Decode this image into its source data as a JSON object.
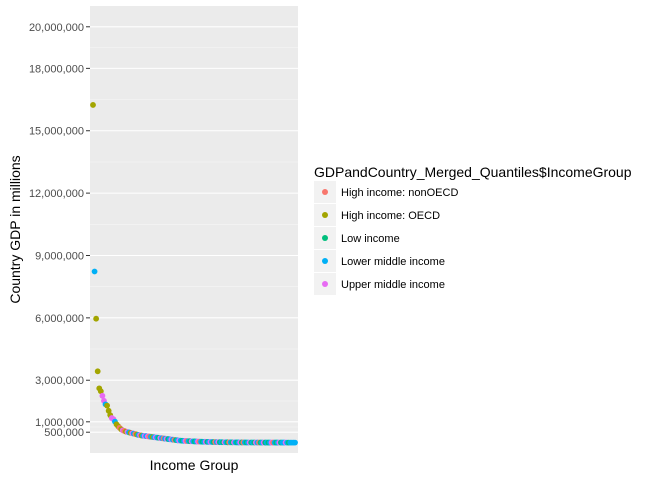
{
  "chart_data": {
    "type": "scatter",
    "xlabel": "Income Group",
    "ylabel": "Country GDP in millions",
    "ylim": [
      -500000,
      21000000
    ],
    "y_ticks": [
      {
        "value": 500000,
        "label": "500,000"
      },
      {
        "value": 1000000,
        "label": "1,000,000"
      },
      {
        "value": 3000000,
        "label": "3,000,000"
      },
      {
        "value": 6000000,
        "label": "6,000,000"
      },
      {
        "value": 9000000,
        "label": "9,000,000"
      },
      {
        "value": 12000000,
        "label": "12,000,000"
      },
      {
        "value": 15000000,
        "label": "15,000,000"
      },
      {
        "value": 18000000,
        "label": "18,000,000"
      },
      {
        "value": 20000000,
        "label": "20,000,000"
      }
    ],
    "grid": true,
    "legend_position": "right",
    "legend": {
      "title": "GDPandCountry_Merged_Quantiles$IncomeGroup",
      "entries": [
        {
          "key": "hno",
          "label": "High income: nonOECD",
          "color": "#F8766D"
        },
        {
          "key": "ho",
          "label": "High income: OECD",
          "color": "#A3A500"
        },
        {
          "key": "li",
          "label": "Low income",
          "color": "#00BF7D"
        },
        {
          "key": "lmi",
          "label": "Lower middle income",
          "color": "#00B0F6"
        },
        {
          "key": "umi",
          "label": "Upper middle income",
          "color": "#E76BF3"
        }
      ]
    },
    "points": [
      {
        "rank": 1,
        "value": 16240000,
        "group": "ho"
      },
      {
        "rank": 2,
        "value": 8230000,
        "group": "lmi"
      },
      {
        "rank": 3,
        "value": 5960000,
        "group": "ho"
      },
      {
        "rank": 4,
        "value": 3430000,
        "group": "ho"
      },
      {
        "rank": 5,
        "value": 2610000,
        "group": "ho"
      },
      {
        "rank": 6,
        "value": 2470000,
        "group": "ho"
      },
      {
        "rank": 7,
        "value": 2250000,
        "group": "umi"
      },
      {
        "rank": 8,
        "value": 2010000,
        "group": "umi"
      },
      {
        "rank": 9,
        "value": 1840000,
        "group": "lmi"
      },
      {
        "rank": 10,
        "value": 1780000,
        "group": "ho"
      },
      {
        "rank": 11,
        "value": 1530000,
        "group": "ho"
      },
      {
        "rank": 12,
        "value": 1320000,
        "group": "ho"
      },
      {
        "rank": 13,
        "value": 1180000,
        "group": "umi"
      },
      {
        "rank": 14,
        "value": 1130000,
        "group": "umi"
      },
      {
        "rank": 15,
        "value": 1010000,
        "group": "lmi"
      },
      {
        "rank": 16,
        "value": 880000,
        "group": "ho"
      },
      {
        "rank": 17,
        "value": 790000,
        "group": "ho"
      },
      {
        "rank": 18,
        "value": 710000,
        "group": "hno"
      },
      {
        "rank": 19,
        "value": 640000,
        "group": "ho"
      },
      {
        "rank": 20,
        "value": 590000,
        "group": "umi"
      },
      {
        "rank": 21,
        "value": 560000,
        "group": "hno"
      },
      {
        "rank": 22,
        "value": 530000,
        "group": "ho"
      },
      {
        "rank": 23,
        "value": 510000,
        "group": "umi"
      },
      {
        "rank": 24,
        "value": 490000,
        "group": "lmi"
      },
      {
        "rank": 25,
        "value": 470000,
        "group": "ho"
      },
      {
        "rank": 26,
        "value": 450000,
        "group": "umi"
      },
      {
        "rank": 27,
        "value": 430000,
        "group": "lmi"
      },
      {
        "rank": 28,
        "value": 410000,
        "group": "hno"
      },
      {
        "rank": 29,
        "value": 390000,
        "group": "ho"
      },
      {
        "rank": 30,
        "value": 370000,
        "group": "lmi"
      },
      {
        "rank": 31,
        "value": 360000,
        "group": "umi"
      },
      {
        "rank": 32,
        "value": 340000,
        "group": "ho"
      },
      {
        "rank": 33,
        "value": 330000,
        "group": "lmi"
      },
      {
        "rank": 34,
        "value": 320000,
        "group": "umi"
      },
      {
        "rank": 35,
        "value": 310000,
        "group": "lmi"
      },
      {
        "rank": 36,
        "value": 300000,
        "group": "umi"
      },
      {
        "rank": 37,
        "value": 290000,
        "group": "hno"
      },
      {
        "rank": 38,
        "value": 280000,
        "group": "lmi"
      },
      {
        "rank": 39,
        "value": 270000,
        "group": "ho"
      },
      {
        "rank": 40,
        "value": 260000,
        "group": "lmi"
      },
      {
        "rank": 41,
        "value": 250000,
        "group": "umi"
      },
      {
        "rank": 42,
        "value": 240000,
        "group": "lmi"
      },
      {
        "rank": 43,
        "value": 230000,
        "group": "li"
      },
      {
        "rank": 44,
        "value": 220000,
        "group": "umi"
      },
      {
        "rank": 45,
        "value": 210000,
        "group": "lmi"
      },
      {
        "rank": 46,
        "value": 200000,
        "group": "hno"
      },
      {
        "rank": 47,
        "value": 190000,
        "group": "lmi"
      },
      {
        "rank": 48,
        "value": 180000,
        "group": "umi"
      },
      {
        "rank": 49,
        "value": 170000,
        "group": "li"
      },
      {
        "rank": 50,
        "value": 160000,
        "group": "lmi"
      },
      {
        "rank": 51,
        "value": 150000,
        "group": "umi"
      },
      {
        "rank": 52,
        "value": 140000,
        "group": "lmi"
      },
      {
        "rank": 53,
        "value": 130000,
        "group": "hno"
      },
      {
        "rank": 54,
        "value": 120000,
        "group": "li"
      },
      {
        "rank": 55,
        "value": 110000,
        "group": "lmi"
      },
      {
        "rank": 56,
        "value": 100000,
        "group": "umi"
      },
      {
        "rank": 57,
        "value": 95000,
        "group": "lmi"
      },
      {
        "rank": 58,
        "value": 90000,
        "group": "li"
      },
      {
        "rank": 59,
        "value": 85000,
        "group": "lmi"
      },
      {
        "rank": 60,
        "value": 80000,
        "group": "umi"
      },
      {
        "rank": 61,
        "value": 76000,
        "group": "hno"
      },
      {
        "rank": 62,
        "value": 72000,
        "group": "lmi"
      },
      {
        "rank": 63,
        "value": 68000,
        "group": "li"
      },
      {
        "rank": 64,
        "value": 64000,
        "group": "umi"
      },
      {
        "rank": 65,
        "value": 60000,
        "group": "lmi"
      },
      {
        "rank": 66,
        "value": 57000,
        "group": "li"
      },
      {
        "rank": 67,
        "value": 54000,
        "group": "lmi"
      },
      {
        "rank": 68,
        "value": 51000,
        "group": "umi"
      },
      {
        "rank": 69,
        "value": 48000,
        "group": "hno"
      },
      {
        "rank": 70,
        "value": 45000,
        "group": "lmi"
      },
      {
        "rank": 71,
        "value": 42000,
        "group": "li"
      },
      {
        "rank": 72,
        "value": 40000,
        "group": "lmi"
      },
      {
        "rank": 73,
        "value": 38000,
        "group": "umi"
      },
      {
        "rank": 74,
        "value": 36000,
        "group": "li"
      },
      {
        "rank": 75,
        "value": 34000,
        "group": "lmi"
      },
      {
        "rank": 76,
        "value": 32000,
        "group": "umi"
      },
      {
        "rank": 77,
        "value": 30000,
        "group": "lmi"
      },
      {
        "rank": 78,
        "value": 28000,
        "group": "li"
      },
      {
        "rank": 79,
        "value": 26000,
        "group": "hno"
      },
      {
        "rank": 80,
        "value": 24000,
        "group": "lmi"
      },
      {
        "rank": 81,
        "value": 22000,
        "group": "umi"
      },
      {
        "rank": 82,
        "value": 20000,
        "group": "li"
      },
      {
        "rank": 83,
        "value": 19000,
        "group": "lmi"
      },
      {
        "rank": 84,
        "value": 18000,
        "group": "li"
      },
      {
        "rank": 85,
        "value": 17000,
        "group": "umi"
      },
      {
        "rank": 86,
        "value": 16000,
        "group": "lmi"
      },
      {
        "rank": 87,
        "value": 15000,
        "group": "li"
      },
      {
        "rank": 88,
        "value": 14000,
        "group": "hno"
      },
      {
        "rank": 89,
        "value": 13000,
        "group": "lmi"
      },
      {
        "rank": 90,
        "value": 12000,
        "group": "li"
      },
      {
        "rank": 91,
        "value": 11000,
        "group": "umi"
      },
      {
        "rank": 92,
        "value": 10000,
        "group": "lmi"
      },
      {
        "rank": 93,
        "value": 9500,
        "group": "li"
      },
      {
        "rank": 94,
        "value": 9000,
        "group": "lmi"
      },
      {
        "rank": 95,
        "value": 8500,
        "group": "umi"
      },
      {
        "rank": 96,
        "value": 8000,
        "group": "li"
      },
      {
        "rank": 97,
        "value": 7500,
        "group": "hno"
      },
      {
        "rank": 98,
        "value": 7000,
        "group": "lmi"
      },
      {
        "rank": 99,
        "value": 6500,
        "group": "li"
      },
      {
        "rank": 100,
        "value": 6000,
        "group": "lmi"
      },
      {
        "rank": 101,
        "value": 5700,
        "group": "umi"
      },
      {
        "rank": 102,
        "value": 5400,
        "group": "li"
      },
      {
        "rank": 103,
        "value": 5100,
        "group": "lmi"
      },
      {
        "rank": 104,
        "value": 4800,
        "group": "li"
      },
      {
        "rank": 105,
        "value": 4500,
        "group": "umi"
      },
      {
        "rank": 106,
        "value": 4200,
        "group": "lmi"
      },
      {
        "rank": 107,
        "value": 4000,
        "group": "hno"
      },
      {
        "rank": 108,
        "value": 3800,
        "group": "li"
      },
      {
        "rank": 109,
        "value": 3600,
        "group": "lmi"
      },
      {
        "rank": 110,
        "value": 3400,
        "group": "umi"
      },
      {
        "rank": 111,
        "value": 3200,
        "group": "li"
      },
      {
        "rank": 112,
        "value": 3000,
        "group": "lmi"
      },
      {
        "rank": 113,
        "value": 2800,
        "group": "li"
      },
      {
        "rank": 114,
        "value": 2600,
        "group": "lmi"
      },
      {
        "rank": 115,
        "value": 2400,
        "group": "umi"
      },
      {
        "rank": 116,
        "value": 2200,
        "group": "hno"
      },
      {
        "rank": 117,
        "value": 2000,
        "group": "lmi"
      },
      {
        "rank": 118,
        "value": 1800,
        "group": "li"
      },
      {
        "rank": 119,
        "value": 1600,
        "group": "lmi"
      },
      {
        "rank": 120,
        "value": 1400,
        "group": "umi"
      },
      {
        "rank": 121,
        "value": 1300,
        "group": "li"
      },
      {
        "rank": 122,
        "value": 1200,
        "group": "lmi"
      },
      {
        "rank": 123,
        "value": 1100,
        "group": "lmi"
      },
      {
        "rank": 124,
        "value": 1000,
        "group": "umi"
      },
      {
        "rank": 125,
        "value": 900,
        "group": "lmi"
      },
      {
        "rank": 126,
        "value": 800,
        "group": "li"
      },
      {
        "rank": 127,
        "value": 700,
        "group": "lmi"
      },
      {
        "rank": 128,
        "value": 600,
        "group": "lmi"
      },
      {
        "rank": 129,
        "value": 500,
        "group": "lmi"
      },
      {
        "rank": 130,
        "value": 400,
        "group": "lmi"
      }
    ]
  }
}
